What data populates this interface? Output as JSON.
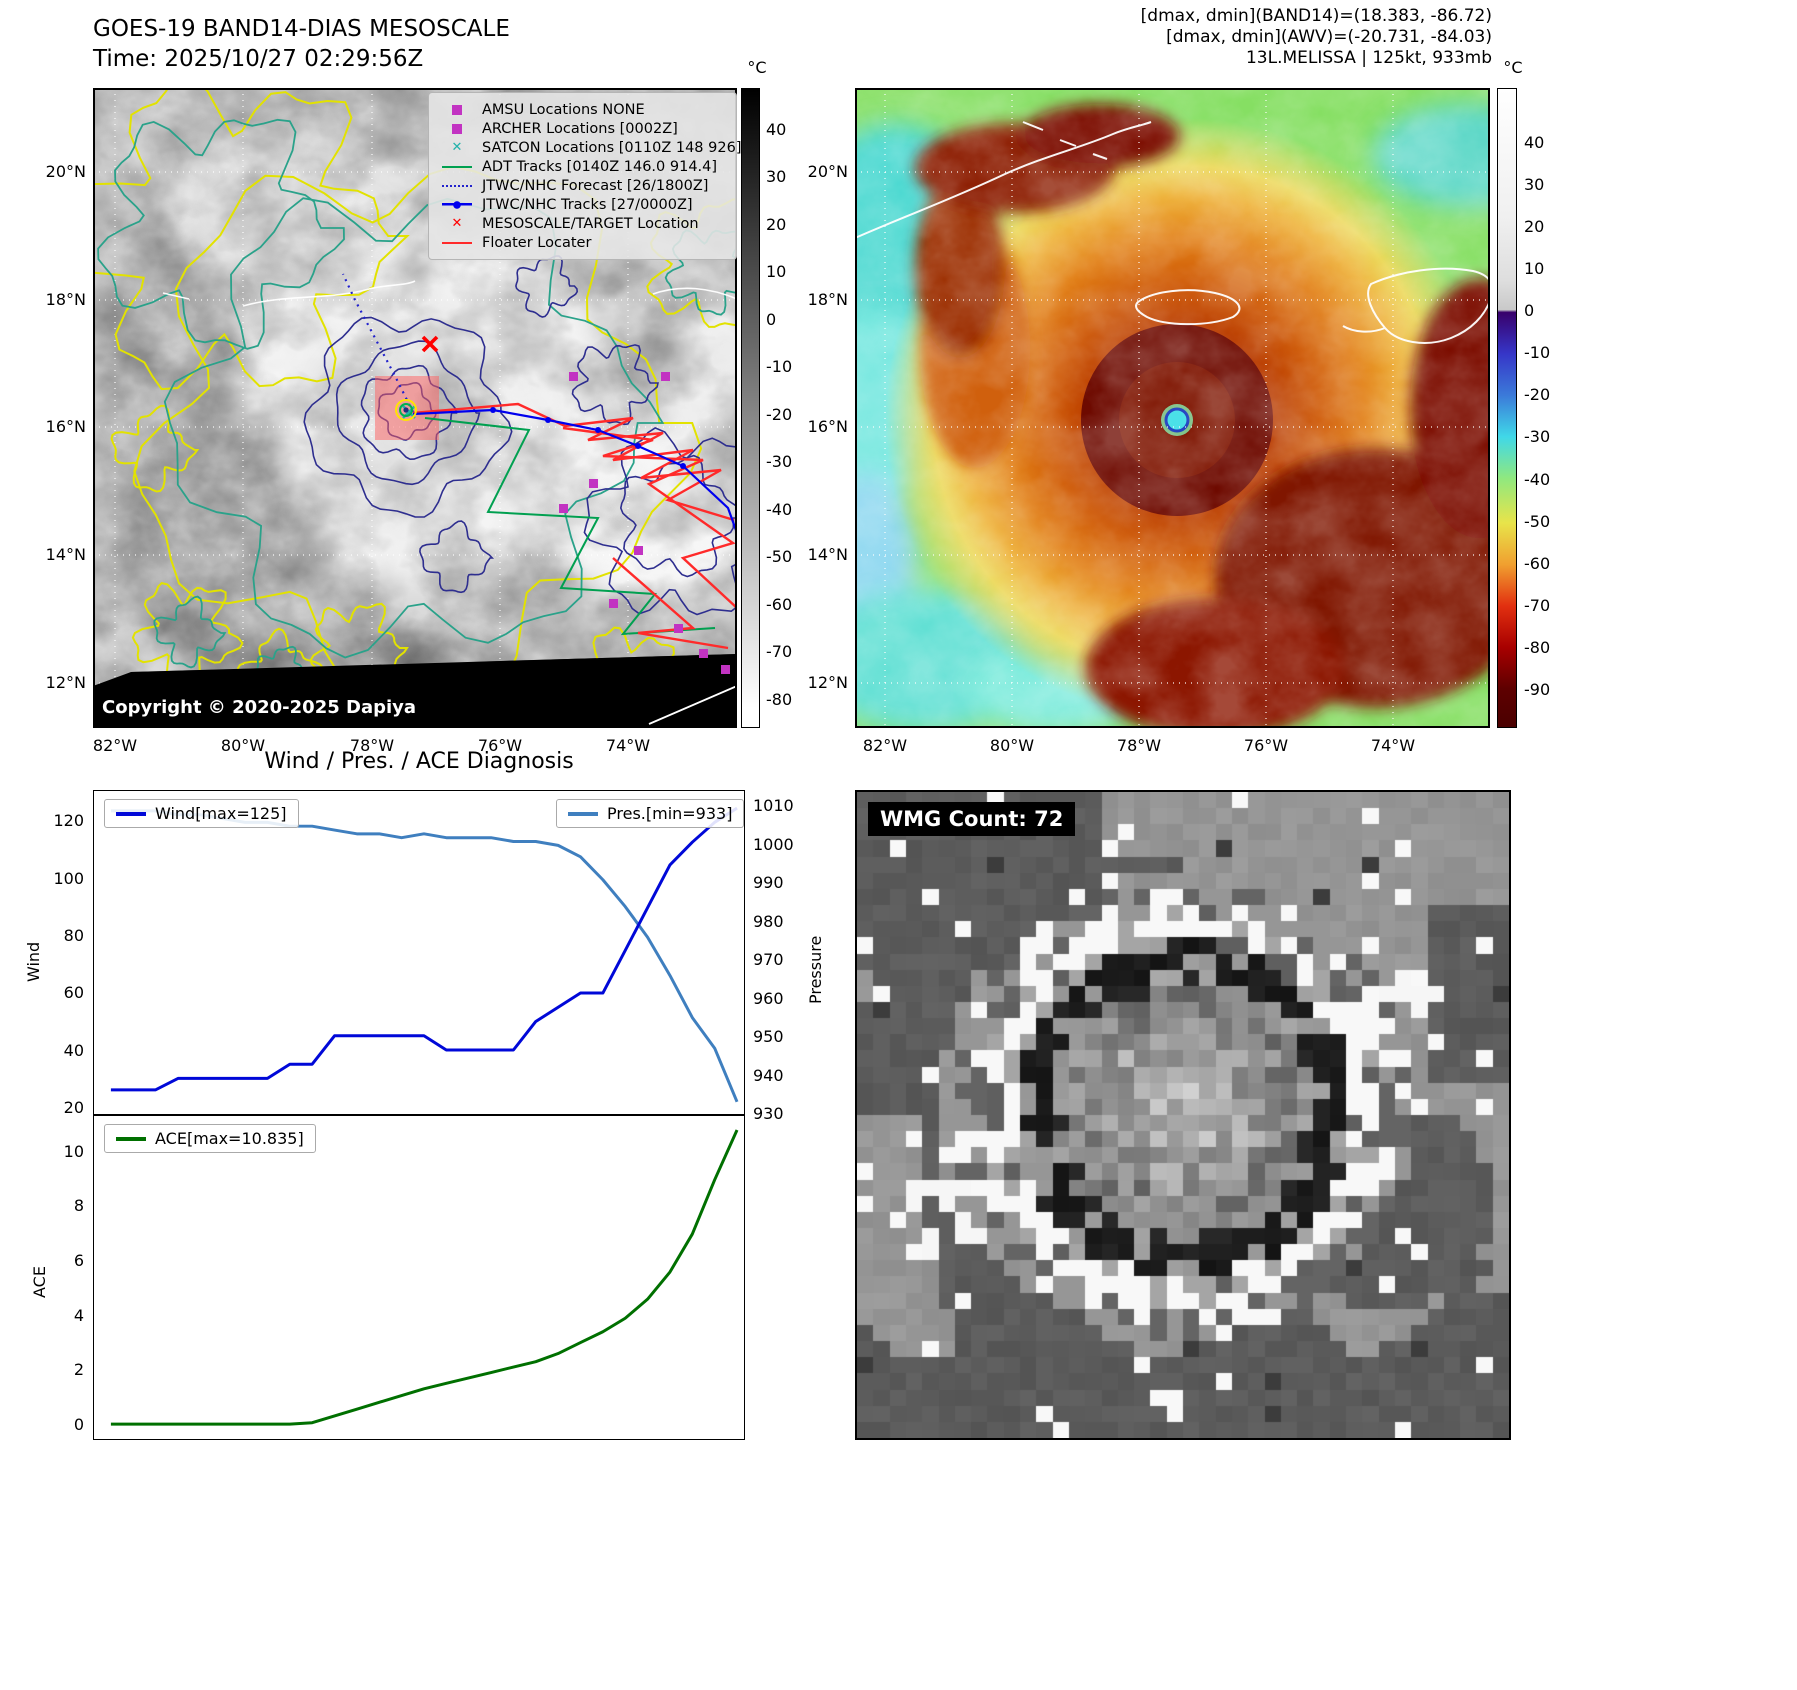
{
  "panel_tl": {
    "title": "GOES-19 BAND14-DIAS MESOSCALE",
    "subtitle": "Time: 2025/10/27 02:29:56Z",
    "copyright": "Copyright © 2020-2025 Dapiya",
    "colorbar_unit": "°C",
    "colorbar_ticks": [
      40,
      30,
      20,
      10,
      0,
      -10,
      -20,
      -30,
      -40,
      -50,
      -60,
      -70,
      -80
    ],
    "lat_labels": [
      "20°N",
      "18°N",
      "16°N",
      "14°N",
      "12°N"
    ],
    "lon_labels": [
      "82°W",
      "80°W",
      "78°W",
      "76°W",
      "74°W"
    ],
    "legend": [
      {
        "label": "AMSU Locations NONE",
        "marker": "square",
        "color": "#c233c2"
      },
      {
        "label": "ARCHER Locations [0002Z]",
        "marker": "square",
        "color": "#c233c2"
      },
      {
        "label": "SATCON Locations [0110Z 148 926]",
        "marker": "x",
        "color": "#20b2aa"
      },
      {
        "label": "ADT Tracks [0140Z 146.0 914.4]",
        "marker": "line",
        "color": "#00a050"
      },
      {
        "label": "JTWC/NHC Forecast [26/1800Z]",
        "marker": "dotted-line",
        "color": "#2222cc"
      },
      {
        "label": "JTWC/NHC Tracks [27/0000Z]",
        "marker": "line-dot",
        "color": "#0000ee"
      },
      {
        "label": "MESOSCALE/TARGET Location",
        "marker": "x",
        "color": "#ff0000"
      },
      {
        "label": "Floater Locater",
        "marker": "line",
        "color": "#ff2a2a"
      }
    ]
  },
  "panel_tr": {
    "info_lines": [
      "[dmax, dmin](BAND14)=(18.383, -86.72)",
      "[dmax, dmin](AWV)=(-20.731, -84.03)",
      "13L.MELISSA | 125kt, 933mb"
    ],
    "colorbar_unit": "°C",
    "colorbar_ticks": [
      40,
      30,
      20,
      10,
      0,
      -10,
      -20,
      -30,
      -40,
      -50,
      -60,
      -70,
      -80,
      -90
    ],
    "lat_labels": [
      "20°N",
      "18°N",
      "16°N",
      "14°N",
      "12°N"
    ],
    "lon_labels": [
      "82°W",
      "80°W",
      "78°W",
      "76°W",
      "74°W"
    ]
  },
  "panel_br": {
    "title": "WMG Count: 72"
  },
  "chart_data": [
    {
      "type": "line",
      "title": "Wind / Pres. / ACE Diagnosis",
      "x": [
        0,
        1,
        2,
        3,
        4,
        5,
        6,
        7,
        8,
        9,
        10,
        11,
        12,
        13,
        14,
        15,
        16,
        17,
        18,
        19,
        20,
        21,
        22,
        23,
        24,
        25,
        26,
        27,
        28
      ],
      "series": [
        {
          "name": "Wind[max=125]",
          "axis": "left",
          "color": "#0008d8",
          "values": [
            26,
            26,
            26,
            30,
            30,
            30,
            30,
            30,
            35,
            35,
            45,
            45,
            45,
            45,
            45,
            40,
            40,
            40,
            40,
            50,
            55,
            60,
            60,
            75,
            90,
            105,
            113,
            120,
            125
          ]
        },
        {
          "name": "Pres.[min=933]",
          "axis": "right",
          "color": "#3f7fbf",
          "values": [
            1009,
            1009,
            1009,
            1008,
            1008,
            1007,
            1006,
            1006,
            1005,
            1005,
            1004,
            1003,
            1003,
            1002,
            1003,
            1002,
            1002,
            1002,
            1001,
            1001,
            1000,
            997,
            991,
            984,
            976,
            966,
            955,
            947,
            933
          ]
        }
      ],
      "ylabel_left": "Wind",
      "ylabel_right": "Pressure",
      "ylim_left": [
        17.5,
        131
      ],
      "yticks_left": [
        20,
        40,
        60,
        80,
        100,
        120
      ],
      "ylim_right": [
        929.8,
        1014.2
      ],
      "yticks_right": [
        1010,
        1000,
        990,
        980,
        970,
        960,
        950,
        940,
        930
      ],
      "grid": false,
      "legend_position": [
        "upper left",
        "upper right"
      ]
    },
    {
      "type": "line",
      "x": [
        0,
        1,
        2,
        3,
        4,
        5,
        6,
        7,
        8,
        9,
        10,
        11,
        12,
        13,
        14,
        15,
        16,
        17,
        18,
        19,
        20,
        21,
        22,
        23,
        24,
        25,
        26,
        27,
        28
      ],
      "series": [
        {
          "name": "ACE[max=10.835]",
          "color": "#007000",
          "values": [
            0,
            0,
            0,
            0,
            0,
            0,
            0,
            0,
            0,
            0.05,
            0.3,
            0.55,
            0.8,
            1.05,
            1.3,
            1.5,
            1.7,
            1.9,
            2.1,
            2.3,
            2.6,
            3.0,
            3.4,
            3.9,
            4.6,
            5.6,
            7.0,
            9.0,
            10.835
          ]
        }
      ],
      "ylabel": "ACE",
      "ylim": [
        -0.55,
        11.35
      ],
      "yticks": [
        0,
        2,
        4,
        6,
        8,
        10
      ],
      "grid": false,
      "legend_position": "upper left"
    }
  ]
}
